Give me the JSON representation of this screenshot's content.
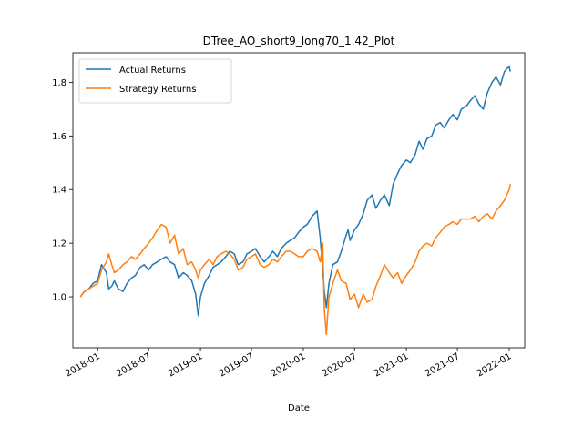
{
  "chart_data": {
    "type": "line",
    "title": "DTree_AO_short9_long70_1.42_Plot",
    "xlabel": "Date",
    "ylabel": "",
    "x_ticks": [
      "2018-01",
      "2018-07",
      "2019-01",
      "2019-07",
      "2020-01",
      "2020-07",
      "2021-01",
      "2021-07",
      "2022-01"
    ],
    "y_ticks": [
      "1.0",
      "1.2",
      "1.4",
      "1.6",
      "1.8"
    ],
    "xlim": [
      "2017-10-05",
      "2022-02-25"
    ],
    "ylim": [
      0.81,
      1.91
    ],
    "grid": false,
    "legend_position": "top-left",
    "x": [
      "2017-11-01",
      "2017-11-15",
      "2017-12-01",
      "2017-12-15",
      "2018-01-01",
      "2018-01-15",
      "2018-02-01",
      "2018-02-09",
      "2018-02-20",
      "2018-03-01",
      "2018-03-15",
      "2018-04-01",
      "2018-04-15",
      "2018-05-01",
      "2018-05-15",
      "2018-06-01",
      "2018-06-15",
      "2018-07-01",
      "2018-07-15",
      "2018-08-01",
      "2018-08-15",
      "2018-09-01",
      "2018-09-15",
      "2018-10-01",
      "2018-10-15",
      "2018-11-01",
      "2018-11-15",
      "2018-12-01",
      "2018-12-15",
      "2018-12-24",
      "2019-01-01",
      "2019-01-15",
      "2019-02-01",
      "2019-02-15",
      "2019-03-01",
      "2019-03-15",
      "2019-04-01",
      "2019-04-15",
      "2019-05-01",
      "2019-05-15",
      "2019-06-01",
      "2019-06-15",
      "2019-07-01",
      "2019-07-15",
      "2019-08-01",
      "2019-08-15",
      "2019-09-01",
      "2019-09-15",
      "2019-10-01",
      "2019-10-15",
      "2019-11-01",
      "2019-11-15",
      "2019-12-01",
      "2019-12-15",
      "2020-01-01",
      "2020-01-15",
      "2020-02-01",
      "2020-02-19",
      "2020-03-01",
      "2020-03-10",
      "2020-03-16",
      "2020-03-23",
      "2020-04-01",
      "2020-04-15",
      "2020-05-01",
      "2020-05-15",
      "2020-06-01",
      "2020-06-08",
      "2020-06-15",
      "2020-07-01",
      "2020-07-15",
      "2020-08-01",
      "2020-08-15",
      "2020-09-01",
      "2020-09-15",
      "2020-10-01",
      "2020-10-15",
      "2020-11-01",
      "2020-11-15",
      "2020-12-01",
      "2020-12-15",
      "2021-01-01",
      "2021-01-15",
      "2021-02-01",
      "2021-02-15",
      "2021-03-01",
      "2021-03-15",
      "2021-04-01",
      "2021-04-15",
      "2021-05-01",
      "2021-05-15",
      "2021-06-01",
      "2021-06-15",
      "2021-07-01",
      "2021-07-15",
      "2021-08-01",
      "2021-08-15",
      "2021-09-01",
      "2021-09-15",
      "2021-10-01",
      "2021-10-15",
      "2021-11-01",
      "2021-11-15",
      "2021-12-01",
      "2021-12-15",
      "2022-01-01",
      "2022-01-05"
    ],
    "series": [
      {
        "name": "Actual Returns",
        "color": "#1f77b4",
        "values": [
          1.0,
          1.02,
          1.03,
          1.05,
          1.06,
          1.12,
          1.09,
          1.03,
          1.04,
          1.06,
          1.03,
          1.02,
          1.05,
          1.07,
          1.08,
          1.11,
          1.12,
          1.1,
          1.12,
          1.13,
          1.14,
          1.15,
          1.13,
          1.12,
          1.07,
          1.09,
          1.08,
          1.06,
          1.01,
          0.93,
          1.0,
          1.05,
          1.08,
          1.11,
          1.12,
          1.13,
          1.15,
          1.17,
          1.16,
          1.12,
          1.13,
          1.16,
          1.17,
          1.18,
          1.15,
          1.13,
          1.15,
          1.17,
          1.15,
          1.18,
          1.2,
          1.21,
          1.22,
          1.24,
          1.26,
          1.27,
          1.3,
          1.32,
          1.22,
          1.1,
          1.02,
          0.96,
          1.05,
          1.12,
          1.13,
          1.17,
          1.23,
          1.25,
          1.21,
          1.25,
          1.27,
          1.31,
          1.36,
          1.38,
          1.33,
          1.36,
          1.38,
          1.34,
          1.42,
          1.46,
          1.49,
          1.51,
          1.5,
          1.53,
          1.58,
          1.55,
          1.59,
          1.6,
          1.64,
          1.65,
          1.63,
          1.66,
          1.68,
          1.66,
          1.7,
          1.71,
          1.73,
          1.75,
          1.72,
          1.7,
          1.76,
          1.8,
          1.82,
          1.79,
          1.84,
          1.86,
          1.84
        ]
      },
      {
        "name": "Strategy Returns",
        "color": "#ff7f0e",
        "values": [
          1.0,
          1.02,
          1.03,
          1.04,
          1.05,
          1.1,
          1.13,
          1.16,
          1.12,
          1.09,
          1.1,
          1.12,
          1.13,
          1.15,
          1.14,
          1.16,
          1.18,
          1.2,
          1.22,
          1.25,
          1.27,
          1.26,
          1.2,
          1.23,
          1.16,
          1.18,
          1.12,
          1.13,
          1.1,
          1.07,
          1.1,
          1.12,
          1.14,
          1.12,
          1.15,
          1.16,
          1.17,
          1.16,
          1.14,
          1.1,
          1.11,
          1.14,
          1.15,
          1.16,
          1.12,
          1.11,
          1.12,
          1.14,
          1.13,
          1.15,
          1.17,
          1.17,
          1.16,
          1.15,
          1.15,
          1.17,
          1.18,
          1.17,
          1.13,
          1.2,
          0.95,
          0.86,
          1.0,
          1.05,
          1.1,
          1.06,
          1.05,
          1.02,
          0.99,
          1.01,
          0.96,
          1.01,
          0.98,
          0.99,
          1.04,
          1.08,
          1.12,
          1.09,
          1.07,
          1.09,
          1.05,
          1.08,
          1.1,
          1.13,
          1.17,
          1.19,
          1.2,
          1.19,
          1.22,
          1.24,
          1.26,
          1.27,
          1.28,
          1.27,
          1.29,
          1.29,
          1.29,
          1.3,
          1.28,
          1.3,
          1.31,
          1.29,
          1.32,
          1.34,
          1.36,
          1.4,
          1.42
        ]
      }
    ]
  }
}
